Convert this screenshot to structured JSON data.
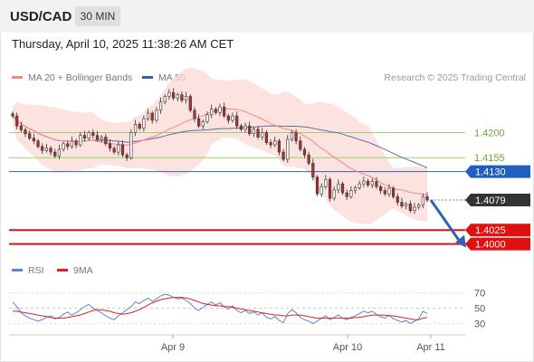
{
  "header": {
    "symbol": "USD/CAD",
    "timeframe": "30 MIN"
  },
  "datetime": "Thursday, April 10, 2025 11:38:26 AM CET",
  "legend": {
    "items": [
      {
        "label": "MA 20 + Bollinger Bands",
        "color": "#f08a80"
      },
      {
        "label": "MA 50",
        "color": "#2f5f9e"
      }
    ],
    "credit": "Research © 2025 Trading Central"
  },
  "rsi_legend": {
    "items": [
      {
        "label": "RSI",
        "color": "#5a86d6"
      },
      {
        "label": "9MA",
        "color": "#e02020"
      }
    ]
  },
  "chart_data": [
    {
      "type": "candlestick",
      "xlabels": [
        "Apr 9",
        "Apr 10",
        "Apr 11"
      ],
      "ylim": [
        1.3975,
        1.43
      ],
      "levels": [
        {
          "value": 1.42,
          "label": "1.4200",
          "kind": "resistance"
        },
        {
          "value": 1.4155,
          "label": "1.4155",
          "kind": "resistance"
        },
        {
          "value": 1.413,
          "label": "1.4130",
          "kind": "pivot"
        },
        {
          "value": 1.4079,
          "label": "1.4079",
          "kind": "last-price"
        },
        {
          "value": 1.4025,
          "label": "1.4025",
          "kind": "support"
        },
        {
          "value": 1.4,
          "label": "1.4000",
          "kind": "support"
        }
      ],
      "forecast": {
        "from": 1.4079,
        "to": 1.4,
        "direction": "down"
      },
      "closes": [
        1.423,
        1.4212,
        1.4205,
        1.4198,
        1.419,
        1.4185,
        1.4175,
        1.4168,
        1.4172,
        1.4165,
        1.4158,
        1.417,
        1.418,
        1.4175,
        1.4185,
        1.4178,
        1.4195,
        1.419,
        1.42,
        1.4195,
        1.4188,
        1.4192,
        1.418,
        1.4172,
        1.4165,
        1.4178,
        1.416,
        1.4155,
        1.42,
        1.4215,
        1.4208,
        1.4225,
        1.4235,
        1.4222,
        1.424,
        1.4255,
        1.4265,
        1.4272,
        1.4262,
        1.4268,
        1.4258,
        1.4265,
        1.424,
        1.4225,
        1.4212,
        1.422,
        1.4232,
        1.4242,
        1.4236,
        1.4246,
        1.423,
        1.4222,
        1.423,
        1.4212,
        1.4206,
        1.4212,
        1.4198,
        1.4206,
        1.4192,
        1.42,
        1.4182,
        1.4178,
        1.4185,
        1.4165,
        1.4152,
        1.4188,
        1.42,
        1.4185,
        1.417,
        1.416,
        1.4145,
        1.412,
        1.409,
        1.4103,
        1.4116,
        1.4082,
        1.4097,
        1.4108,
        1.4092,
        1.4085,
        1.4096,
        1.4101,
        1.4108,
        1.4113,
        1.4106,
        1.4112,
        1.4103,
        1.4096,
        1.409,
        1.41,
        1.4085,
        1.4075,
        1.4068,
        1.4072,
        1.406,
        1.4066,
        1.407,
        1.4085,
        1.4079
      ]
    },
    {
      "type": "line",
      "title": "RSI",
      "ylim": [
        20,
        80
      ],
      "yticks": [
        70,
        50,
        30
      ],
      "series": [
        {
          "name": "RSI",
          "values": [
            58,
            52,
            44,
            40,
            37,
            35,
            33,
            35,
            38,
            40,
            36,
            38,
            42,
            45,
            41,
            44,
            48,
            52,
            55,
            50,
            47,
            44,
            40,
            37,
            35,
            40,
            44,
            48,
            52,
            58,
            56,
            60,
            63,
            59,
            62,
            66,
            68,
            67,
            64,
            62,
            63,
            60,
            56,
            50,
            47,
            51,
            55,
            58,
            54,
            57,
            52,
            49,
            53,
            47,
            44,
            47,
            43,
            45,
            41,
            44,
            38,
            36,
            39,
            34,
            31,
            43,
            48,
            44,
            38,
            35,
            33,
            30,
            33,
            37,
            40,
            35,
            38,
            41,
            37,
            35,
            38,
            40,
            43,
            46,
            44,
            46,
            42,
            39,
            37,
            41,
            36,
            34,
            32,
            34,
            30,
            33,
            36,
            46,
            43
          ]
        },
        {
          "name": "9MA",
          "values": [
            46,
            46,
            45,
            44,
            43,
            42,
            41,
            40,
            39,
            38,
            37,
            37,
            37,
            38,
            39,
            40,
            41,
            43,
            45,
            47,
            48,
            48,
            47,
            46,
            44,
            43,
            42,
            43,
            44,
            46,
            48,
            51,
            54,
            57,
            59,
            61,
            62,
            63,
            64,
            64,
            64,
            63,
            62,
            60,
            58,
            56,
            55,
            54,
            53,
            53,
            52,
            52,
            51,
            50,
            49,
            48,
            47,
            46,
            45,
            44,
            43,
            42,
            41,
            41,
            40,
            40,
            41,
            41,
            41,
            40,
            39,
            38,
            37,
            37,
            37,
            37,
            37,
            37,
            37,
            37,
            37,
            38,
            38,
            39,
            40,
            41,
            41,
            41,
            41,
            40,
            40,
            39,
            38,
            37,
            36,
            35,
            35,
            37,
            38
          ]
        }
      ]
    }
  ]
}
